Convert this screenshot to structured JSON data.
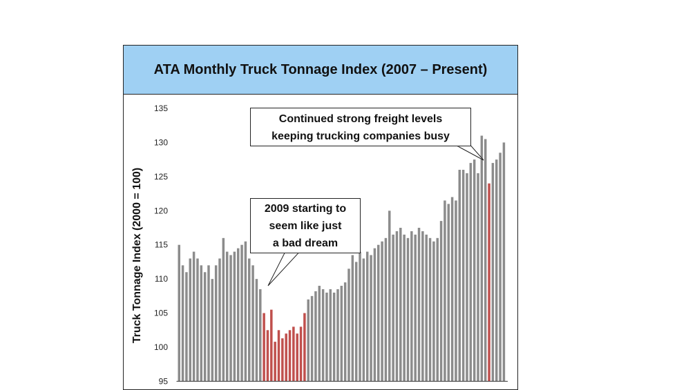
{
  "chart_data": {
    "type": "bar",
    "title": "ATA Monthly Truck Tonnage Index (2007 – Present)",
    "ylabel": "Truck Tonnage Index (2000 = 100)",
    "xlabel": "",
    "ylim": [
      95,
      135
    ],
    "yticks": [
      95,
      100,
      105,
      110,
      115,
      120,
      125,
      130,
      135
    ],
    "normal_color": "#8c8c8c",
    "highlight_color": "#c0504d",
    "values": [
      115.0,
      112.0,
      111.0,
      113.0,
      114.0,
      113.0,
      112.0,
      111.0,
      112.0,
      110.0,
      112.0,
      113.0,
      116.0,
      114.0,
      113.5,
      114.0,
      114.5,
      115.0,
      115.5,
      113.0,
      112.0,
      110.0,
      108.5,
      105.0,
      102.5,
      105.5,
      100.8,
      102.5,
      101.3,
      102.0,
      102.5,
      103.0,
      102.0,
      103.0,
      105.0,
      107.0,
      107.5,
      108.2,
      109.0,
      108.5,
      108.0,
      108.5,
      108.0,
      108.5,
      109.0,
      109.5,
      111.5,
      113.5,
      112.5,
      114.0,
      113.0,
      114.0,
      113.5,
      114.5,
      115.0,
      115.5,
      116.0,
      120.0,
      116.5,
      117.0,
      117.5,
      116.5,
      116.0,
      117.0,
      116.5,
      117.5,
      117.0,
      116.5,
      116.0,
      115.5,
      116.0,
      118.5,
      121.5,
      121.0,
      122.0,
      121.5,
      126.0,
      126.0,
      125.5,
      127.0,
      127.5,
      125.5,
      131.0,
      130.5,
      124.0,
      127.0,
      127.5,
      128.5,
      130.0
    ],
    "highlight_indices": [
      23,
      24,
      25,
      26,
      27,
      28,
      29,
      30,
      31,
      32,
      33,
      34,
      84
    ],
    "annotations": [
      {
        "lines": [
          "Continued strong freight levels",
          "keeping trucking companies busy"
        ],
        "points_to": "2013-2014 peak"
      },
      {
        "lines": [
          "2009 starting to",
          "seem like just",
          "a bad dream"
        ],
        "points_to": "2009 dip"
      }
    ]
  }
}
